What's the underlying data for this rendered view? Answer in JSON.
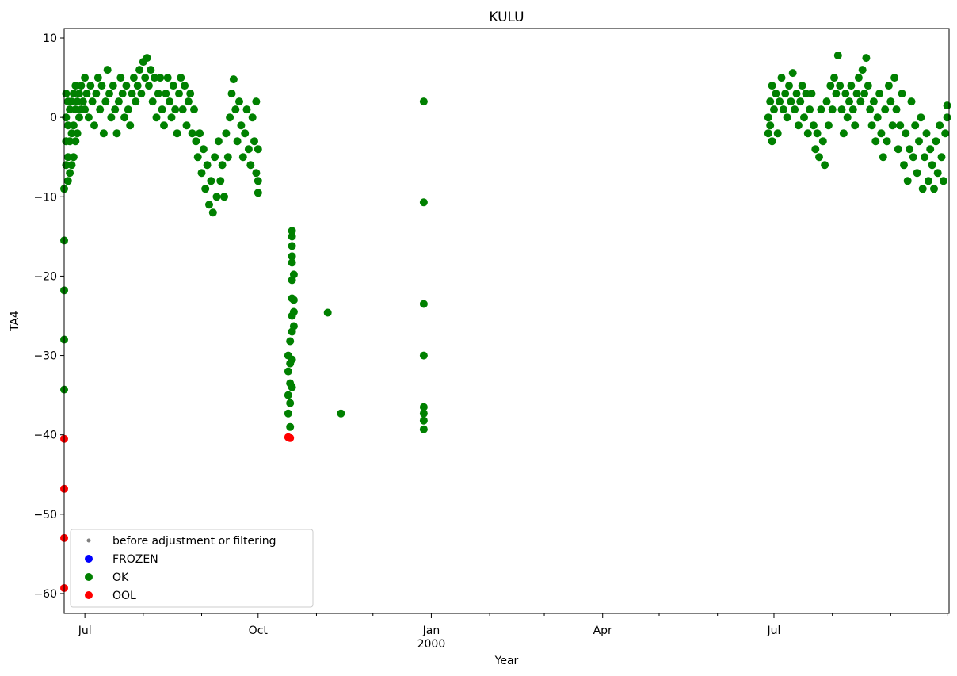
{
  "chart_data": {
    "type": "scatter",
    "title": "KULU",
    "xlabel": "Year",
    "ylabel": "TA4",
    "x_axis": "date",
    "xlim": [
      "1999-06-20",
      "2000-10-02"
    ],
    "ylim": [
      -62.5,
      11.2
    ],
    "grid": false,
    "legend_position": "lower-left",
    "x_ticks": [
      {
        "date": "1999-07-01",
        "label": "Jul",
        "sub": ""
      },
      {
        "date": "1999-10-01",
        "label": "Oct",
        "sub": ""
      },
      {
        "date": "2000-01-01",
        "label": "Jan",
        "sub": "2000"
      },
      {
        "date": "2000-04-01",
        "label": "Apr",
        "sub": ""
      },
      {
        "date": "2000-07-01",
        "label": "Jul",
        "sub": ""
      }
    ],
    "x_minor_ticks": [
      "1999-08-01",
      "1999-09-01",
      "1999-11-01",
      "1999-12-01",
      "2000-02-01",
      "2000-03-01",
      "2000-05-01",
      "2000-06-01",
      "2000-08-01",
      "2000-09-01",
      "2000-10-01"
    ],
    "y_ticks": [
      10,
      0,
      -10,
      -20,
      -30,
      -40,
      -50,
      -60
    ],
    "y_tick_labels": [
      "10",
      "0",
      "−10",
      "−20",
      "−30",
      "−40",
      "−50",
      "−60"
    ],
    "series": [
      {
        "name": "before adjustment or filtering",
        "color": "#808080",
        "marker": "small-dot",
        "points": []
      },
      {
        "name": "FROZEN",
        "color": "#0000ff",
        "marker": "dot",
        "points": []
      },
      {
        "name": "OK",
        "color": "#008000",
        "marker": "dot",
        "points": [
          [
            "1999-06-20",
            -9
          ],
          [
            "1999-06-20",
            -15.5
          ],
          [
            "1999-06-20",
            -21.8
          ],
          [
            "1999-06-20",
            -28
          ],
          [
            "1999-06-20",
            -34.3
          ],
          [
            "1999-06-21",
            -6
          ],
          [
            "1999-06-21",
            -3
          ],
          [
            "1999-06-21",
            0
          ],
          [
            "1999-06-21",
            3
          ],
          [
            "1999-06-22",
            -8
          ],
          [
            "1999-06-22",
            -5
          ],
          [
            "1999-06-22",
            -1
          ],
          [
            "1999-06-22",
            2
          ],
          [
            "1999-06-23",
            -7
          ],
          [
            "1999-06-23",
            -3
          ],
          [
            "1999-06-23",
            1
          ],
          [
            "1999-06-24",
            -6
          ],
          [
            "1999-06-24",
            -2
          ],
          [
            "1999-06-24",
            2
          ],
          [
            "1999-06-25",
            -5
          ],
          [
            "1999-06-25",
            -1
          ],
          [
            "1999-06-25",
            3
          ],
          [
            "1999-06-26",
            -3
          ],
          [
            "1999-06-26",
            1
          ],
          [
            "1999-06-26",
            4
          ],
          [
            "1999-06-27",
            -2
          ],
          [
            "1999-06-27",
            2
          ],
          [
            "1999-06-28",
            0
          ],
          [
            "1999-06-28",
            3
          ],
          [
            "1999-06-29",
            1
          ],
          [
            "1999-06-29",
            4
          ],
          [
            "1999-06-30",
            2
          ],
          [
            "1999-07-01",
            5
          ],
          [
            "1999-07-01",
            1
          ],
          [
            "1999-07-02",
            3
          ],
          [
            "1999-07-03",
            0
          ],
          [
            "1999-07-04",
            4
          ],
          [
            "1999-07-05",
            2
          ],
          [
            "1999-07-06",
            -1
          ],
          [
            "1999-07-07",
            3
          ],
          [
            "1999-07-08",
            5
          ],
          [
            "1999-07-09",
            1
          ],
          [
            "1999-07-10",
            4
          ],
          [
            "1999-07-11",
            -2
          ],
          [
            "1999-07-12",
            2
          ],
          [
            "1999-07-13",
            6
          ],
          [
            "1999-07-14",
            3
          ],
          [
            "1999-07-15",
            0
          ],
          [
            "1999-07-16",
            4
          ],
          [
            "1999-07-17",
            1
          ],
          [
            "1999-07-18",
            -2
          ],
          [
            "1999-07-19",
            2
          ],
          [
            "1999-07-20",
            5
          ],
          [
            "1999-07-21",
            3
          ],
          [
            "1999-07-22",
            0
          ],
          [
            "1999-07-23",
            4
          ],
          [
            "1999-07-24",
            1
          ],
          [
            "1999-07-25",
            -1
          ],
          [
            "1999-07-26",
            3
          ],
          [
            "1999-07-27",
            5
          ],
          [
            "1999-07-28",
            2
          ],
          [
            "1999-07-29",
            4
          ],
          [
            "1999-07-30",
            6
          ],
          [
            "1999-07-31",
            3
          ],
          [
            "1999-08-01",
            7
          ],
          [
            "1999-08-02",
            5
          ],
          [
            "1999-08-03",
            7.5
          ],
          [
            "1999-08-04",
            4
          ],
          [
            "1999-08-05",
            6
          ],
          [
            "1999-08-06",
            2
          ],
          [
            "1999-08-07",
            5
          ],
          [
            "1999-08-08",
            0
          ],
          [
            "1999-08-09",
            3
          ],
          [
            "1999-08-10",
            5
          ],
          [
            "1999-08-11",
            1
          ],
          [
            "1999-08-12",
            -1
          ],
          [
            "1999-08-13",
            3
          ],
          [
            "1999-08-14",
            5
          ],
          [
            "1999-08-15",
            2
          ],
          [
            "1999-08-16",
            0
          ],
          [
            "1999-08-17",
            4
          ],
          [
            "1999-08-18",
            1
          ],
          [
            "1999-08-19",
            -2
          ],
          [
            "1999-08-20",
            3
          ],
          [
            "1999-08-21",
            5
          ],
          [
            "1999-08-22",
            1
          ],
          [
            "1999-08-23",
            4
          ],
          [
            "1999-08-24",
            -1
          ],
          [
            "1999-08-25",
            2
          ],
          [
            "1999-08-26",
            3
          ],
          [
            "1999-08-27",
            -2
          ],
          [
            "1999-08-28",
            1
          ],
          [
            "1999-08-29",
            -3
          ],
          [
            "1999-08-30",
            -5
          ],
          [
            "1999-08-31",
            -2
          ],
          [
            "1999-09-01",
            -7
          ],
          [
            "1999-09-02",
            -4
          ],
          [
            "1999-09-03",
            -9
          ],
          [
            "1999-09-04",
            -6
          ],
          [
            "1999-09-05",
            -11
          ],
          [
            "1999-09-06",
            -8
          ],
          [
            "1999-09-07",
            -12
          ],
          [
            "1999-09-08",
            -5
          ],
          [
            "1999-09-09",
            -10
          ],
          [
            "1999-09-10",
            -3
          ],
          [
            "1999-09-11",
            -8
          ],
          [
            "1999-09-12",
            -6
          ],
          [
            "1999-09-13",
            -10
          ],
          [
            "1999-09-14",
            -2
          ],
          [
            "1999-09-15",
            -5
          ],
          [
            "1999-09-16",
            0
          ],
          [
            "1999-09-17",
            3
          ],
          [
            "1999-09-18",
            4.8
          ],
          [
            "1999-09-19",
            1
          ],
          [
            "1999-09-20",
            -3
          ],
          [
            "1999-09-21",
            2
          ],
          [
            "1999-09-22",
            -1
          ],
          [
            "1999-09-23",
            -5
          ],
          [
            "1999-09-24",
            -2
          ],
          [
            "1999-09-25",
            1
          ],
          [
            "1999-09-26",
            -4
          ],
          [
            "1999-09-27",
            -6
          ],
          [
            "1999-09-28",
            0
          ],
          [
            "1999-09-29",
            -3
          ],
          [
            "1999-09-30",
            2
          ],
          [
            "1999-09-30",
            -7
          ],
          [
            "1999-10-01",
            -8
          ],
          [
            "1999-10-01",
            -9.5
          ],
          [
            "1999-10-01",
            -4
          ],
          [
            "1999-10-17",
            -37.3
          ],
          [
            "1999-10-17",
            -35
          ],
          [
            "1999-10-17",
            -32
          ],
          [
            "1999-10-17",
            -30
          ],
          [
            "1999-10-18",
            -33.5
          ],
          [
            "1999-10-18",
            -31
          ],
          [
            "1999-10-18",
            -28.2
          ],
          [
            "1999-10-18",
            -36
          ],
          [
            "1999-10-18",
            -39
          ],
          [
            "1999-10-19",
            -27
          ],
          [
            "1999-10-19",
            -25
          ],
          [
            "1999-10-19",
            -30.5
          ],
          [
            "1999-10-19",
            -34
          ],
          [
            "1999-10-19",
            -22.8
          ],
          [
            "1999-10-19",
            -20.5
          ],
          [
            "1999-10-19",
            -18.3
          ],
          [
            "1999-10-19",
            -17.5
          ],
          [
            "1999-10-19",
            -16.2
          ],
          [
            "1999-10-19",
            -15
          ],
          [
            "1999-10-19",
            -14.3
          ],
          [
            "1999-10-20",
            -23
          ],
          [
            "1999-10-20",
            -24.5
          ],
          [
            "1999-10-20",
            -26.3
          ],
          [
            "1999-10-20",
            -19.8
          ],
          [
            "1999-11-07",
            -24.6
          ],
          [
            "1999-11-14",
            -37.3
          ],
          [
            "1999-12-28",
            2
          ],
          [
            "1999-12-28",
            -10.7
          ],
          [
            "1999-12-28",
            -23.5
          ],
          [
            "1999-12-28",
            -30
          ],
          [
            "1999-12-28",
            -36.5
          ],
          [
            "1999-12-28",
            -37.3
          ],
          [
            "1999-12-28",
            -38.2
          ],
          [
            "1999-12-28",
            -39.3
          ],
          [
            "2000-06-28",
            0
          ],
          [
            "2000-06-28",
            -2
          ],
          [
            "2000-06-29",
            2
          ],
          [
            "2000-06-29",
            -1
          ],
          [
            "2000-06-30",
            4
          ],
          [
            "2000-06-30",
            -3
          ],
          [
            "2000-07-01",
            1
          ],
          [
            "2000-07-02",
            3
          ],
          [
            "2000-07-03",
            -2
          ],
          [
            "2000-07-04",
            2
          ],
          [
            "2000-07-05",
            5
          ],
          [
            "2000-07-06",
            1
          ],
          [
            "2000-07-07",
            3
          ],
          [
            "2000-07-08",
            0
          ],
          [
            "2000-07-09",
            4
          ],
          [
            "2000-07-10",
            2
          ],
          [
            "2000-07-11",
            5.6
          ],
          [
            "2000-07-12",
            1
          ],
          [
            "2000-07-13",
            3
          ],
          [
            "2000-07-14",
            -1
          ],
          [
            "2000-07-15",
            2
          ],
          [
            "2000-07-16",
            4
          ],
          [
            "2000-07-17",
            0
          ],
          [
            "2000-07-18",
            3
          ],
          [
            "2000-07-19",
            -2
          ],
          [
            "2000-07-20",
            1
          ],
          [
            "2000-07-21",
            3
          ],
          [
            "2000-07-22",
            -1
          ],
          [
            "2000-07-23",
            -4
          ],
          [
            "2000-07-24",
            -2
          ],
          [
            "2000-07-25",
            -5
          ],
          [
            "2000-07-26",
            1
          ],
          [
            "2000-07-27",
            -3
          ],
          [
            "2000-07-28",
            -6
          ],
          [
            "2000-07-29",
            2
          ],
          [
            "2000-07-30",
            -1
          ],
          [
            "2000-07-31",
            4
          ],
          [
            "2000-08-01",
            1
          ],
          [
            "2000-08-02",
            5
          ],
          [
            "2000-08-03",
            3
          ],
          [
            "2000-08-04",
            7.8
          ],
          [
            "2000-08-05",
            4
          ],
          [
            "2000-08-06",
            1
          ],
          [
            "2000-08-07",
            -2
          ],
          [
            "2000-08-08",
            3
          ],
          [
            "2000-08-09",
            0
          ],
          [
            "2000-08-10",
            2
          ],
          [
            "2000-08-11",
            4
          ],
          [
            "2000-08-12",
            1
          ],
          [
            "2000-08-13",
            -1
          ],
          [
            "2000-08-14",
            3
          ],
          [
            "2000-08-15",
            5
          ],
          [
            "2000-08-16",
            2
          ],
          [
            "2000-08-17",
            6
          ],
          [
            "2000-08-18",
            3
          ],
          [
            "2000-08-19",
            7.5
          ],
          [
            "2000-08-20",
            4
          ],
          [
            "2000-08-21",
            1
          ],
          [
            "2000-08-22",
            -1
          ],
          [
            "2000-08-23",
            2
          ],
          [
            "2000-08-24",
            -3
          ],
          [
            "2000-08-25",
            0
          ],
          [
            "2000-08-26",
            3
          ],
          [
            "2000-08-27",
            -2
          ],
          [
            "2000-08-28",
            -5
          ],
          [
            "2000-08-29",
            1
          ],
          [
            "2000-08-30",
            -3
          ],
          [
            "2000-08-31",
            4
          ],
          [
            "2000-09-01",
            2
          ],
          [
            "2000-09-02",
            -1
          ],
          [
            "2000-09-03",
            5
          ],
          [
            "2000-09-04",
            1
          ],
          [
            "2000-09-05",
            -4
          ],
          [
            "2000-09-06",
            -1
          ],
          [
            "2000-09-07",
            3
          ],
          [
            "2000-09-08",
            -6
          ],
          [
            "2000-09-09",
            -2
          ],
          [
            "2000-09-10",
            -8
          ],
          [
            "2000-09-11",
            -4
          ],
          [
            "2000-09-12",
            2
          ],
          [
            "2000-09-13",
            -5
          ],
          [
            "2000-09-14",
            -1
          ],
          [
            "2000-09-15",
            -7
          ],
          [
            "2000-09-16",
            -3
          ],
          [
            "2000-09-17",
            0
          ],
          [
            "2000-09-18",
            -9
          ],
          [
            "2000-09-19",
            -5
          ],
          [
            "2000-09-20",
            -2
          ],
          [
            "2000-09-21",
            -8
          ],
          [
            "2000-09-22",
            -4
          ],
          [
            "2000-09-23",
            -6
          ],
          [
            "2000-09-24",
            -9
          ],
          [
            "2000-09-25",
            -3
          ],
          [
            "2000-09-26",
            -7
          ],
          [
            "2000-09-27",
            -1
          ],
          [
            "2000-09-28",
            -5
          ],
          [
            "2000-09-29",
            -8
          ],
          [
            "2000-09-30",
            -2
          ],
          [
            "2000-10-01",
            0
          ],
          [
            "2000-10-01",
            1.5
          ]
        ]
      },
      {
        "name": "OOL",
        "color": "#ff0000",
        "marker": "dot",
        "points": [
          [
            "1999-06-20",
            -40.5
          ],
          [
            "1999-06-20",
            -46.8
          ],
          [
            "1999-06-20",
            -53
          ],
          [
            "1999-06-20",
            -59.3
          ],
          [
            "1999-10-17",
            -40.3
          ],
          [
            "1999-10-18",
            -40.4
          ]
        ]
      }
    ]
  }
}
